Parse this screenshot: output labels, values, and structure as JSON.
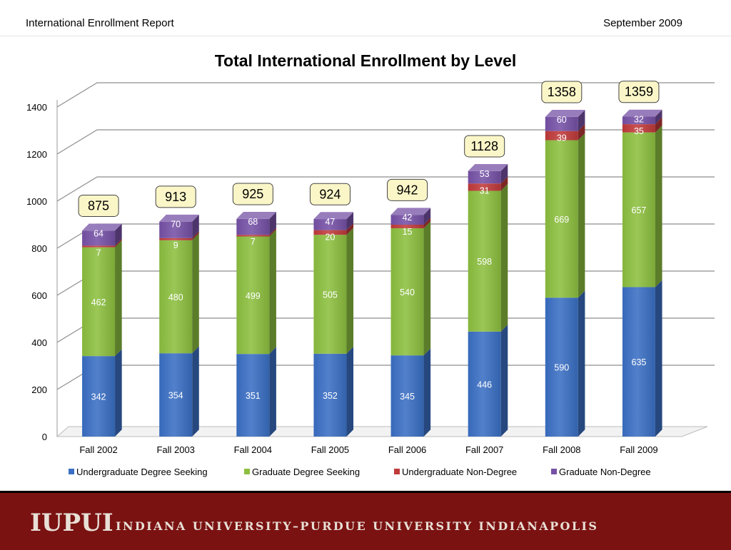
{
  "header": {
    "report_title": "International Enrollment Report",
    "date": "September 2009"
  },
  "footer": {
    "logo": "IUPUI",
    "tagline": "INDIANA UNIVERSITY–PURDUE UNIVERSITY INDIANAPOLIS"
  },
  "chart_data": {
    "type": "bar",
    "stacked": true,
    "style": "3d",
    "title": "Total International Enrollment by Level",
    "xlabel": "",
    "ylabel": "",
    "ylim": [
      0,
      1400
    ],
    "yticks": [
      0,
      200,
      400,
      600,
      800,
      1000,
      1200,
      1400
    ],
    "grid": true,
    "legend_position": "bottom",
    "categories": [
      "Fall 2002",
      "Fall 2003",
      "Fall 2004",
      "Fall 2005",
      "Fall 2006",
      "Fall 2007",
      "Fall 2008",
      "Fall 2009"
    ],
    "series": [
      {
        "name": "Undergraduate Degree Seeking",
        "color": "#3a6fc4",
        "values": [
          342,
          354,
          351,
          352,
          345,
          446,
          590,
          635
        ]
      },
      {
        "name": "Graduate Degree Seeking",
        "color": "#8cbf3f",
        "values": [
          462,
          480,
          499,
          505,
          540,
          598,
          669,
          657
        ]
      },
      {
        "name": "Undergraduate Non-Degree",
        "color": "#c03a3a",
        "values": [
          7,
          9,
          7,
          20,
          15,
          31,
          39,
          35
        ]
      },
      {
        "name": "Graduate Non-Degree",
        "color": "#7651a6",
        "values": [
          64,
          70,
          68,
          47,
          42,
          53,
          60,
          32
        ]
      }
    ],
    "totals": [
      875,
      913,
      925,
      924,
      942,
      1128,
      1358,
      1359
    ]
  }
}
